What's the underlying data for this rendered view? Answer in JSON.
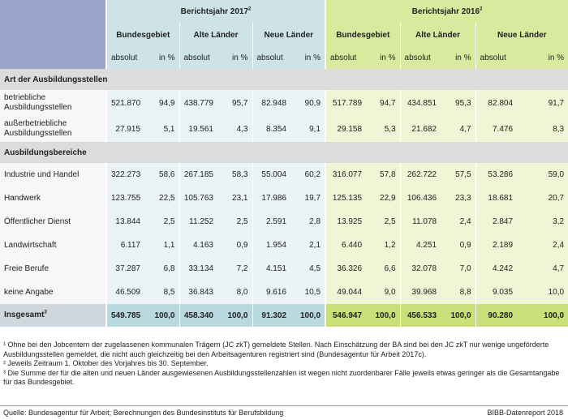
{
  "header": {
    "year_2017": "Berichtsjahr 2017",
    "year_2017_sup": "2",
    "year_2016": "Berichtsjahr 2016",
    "year_2016_sup": "2",
    "regions": [
      "Bundesgebiet",
      "Alte Länder",
      "Neue Länder"
    ],
    "unit_abs": "absolut",
    "unit_pct": "in %"
  },
  "sections": [
    {
      "title": "Art der Ausbildungsstellen",
      "rows": [
        {
          "label": "betriebliche Ausbildungsstellen",
          "v": [
            "521.870",
            "94,9",
            "438.779",
            "95,7",
            "82.948",
            "90,9",
            "517.789",
            "94,7",
            "434.851",
            "95,3",
            "82.804",
            "91,7"
          ]
        },
        {
          "label": "außerbetriebliche Ausbildungsstellen",
          "v": [
            "27.915",
            "5,1",
            "19.561",
            "4,3",
            "8.354",
            "9,1",
            "29.158",
            "5,3",
            "21.682",
            "4,7",
            "7.476",
            "8,3"
          ]
        }
      ]
    },
    {
      "title": "Ausbildungsbereiche",
      "rows": [
        {
          "label": "Industrie und Handel",
          "v": [
            "322.273",
            "58,6",
            "267.185",
            "58,3",
            "55.004",
            "60,2",
            "316.077",
            "57,8",
            "262.722",
            "57,5",
            "53.286",
            "59,0"
          ]
        },
        {
          "label": "Handwerk",
          "v": [
            "123.755",
            "22,5",
            "105.763",
            "23,1",
            "17.986",
            "19,7",
            "125.135",
            "22,9",
            "106.436",
            "23,3",
            "18.681",
            "20,7"
          ]
        },
        {
          "label": "Öffentlicher Dienst",
          "v": [
            "13.844",
            "2,5",
            "11.252",
            "2,5",
            "2.591",
            "2,8",
            "13.925",
            "2,5",
            "11.078",
            "2,4",
            "2.847",
            "3,2"
          ]
        },
        {
          "label": "Landwirtschaft",
          "v": [
            "6.117",
            "1,1",
            "4.163",
            "0,9",
            "1.954",
            "2,1",
            "6.440",
            "1,2",
            "4.251",
            "0,9",
            "2.189",
            "2,4"
          ]
        },
        {
          "label": "Freie Berufe",
          "v": [
            "37.287",
            "6,8",
            "33.134",
            "7,2",
            "4.151",
            "4,5",
            "36.326",
            "6,6",
            "32.078",
            "7,0",
            "4.242",
            "4,7"
          ]
        },
        {
          "label": "keine Angabe",
          "v": [
            "46.509",
            "8,5",
            "36.843",
            "8,0",
            "9.616",
            "10,5",
            "49.044",
            "9,0",
            "39.968",
            "8,8",
            "9.035",
            "10,0"
          ]
        }
      ]
    }
  ],
  "total": {
    "label": "Insgesamt",
    "label_sup": "3",
    "v": [
      "549.785",
      "100,0",
      "458.340",
      "100,0",
      "91.302",
      "100,0",
      "546.947",
      "100,0",
      "456.533",
      "100,0",
      "90.280",
      "100,0"
    ]
  },
  "notes": [
    "¹ Ohne bei den Jobcentern der zugelassenen kommunalen Trägern (JC zkT) gemeldete Stellen. Nach Einschätzung der BA sind bei den JC zkT nur wenige ungeförderte Ausbildungsstellen gemeldet, die nicht auch gleichzeitig bei den Arbeitsagenturen registriert sind (Bundesagentur für Arbeit 2017c).",
    "² Jeweils Zeitraum 1. Oktober des Vorjahres bis 30. September.",
    "³ Die Summe der für die alten und neuen Länder ausgewiesenen Ausbildungsstellenzahlen ist wegen nicht zuordenbarer Fälle jeweils etwas geringer als die Gesamtangabe für das Bundesgebiet."
  ],
  "source": "Quelle: Bundesagentur für Arbeit; Berechnungen des Bundesinstituts für Berufsbildung",
  "report": "BIBB-Datenreport 2018",
  "colors": {
    "blue_head": "#9ca3cc",
    "teal_2017": "#cde3e8",
    "green_2016": "#d9ea9e",
    "section_gray": "#dcdcdc"
  }
}
